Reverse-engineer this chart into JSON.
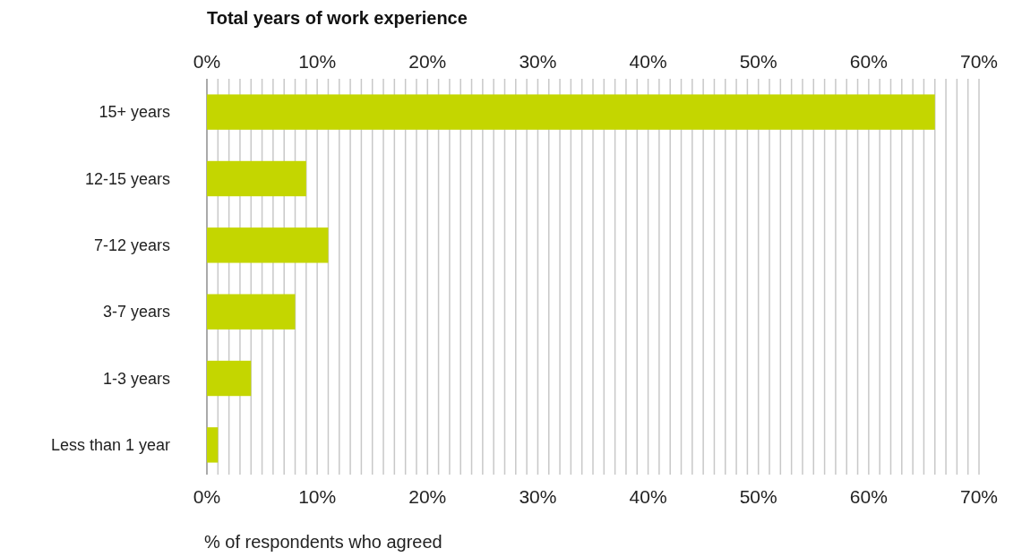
{
  "chart_data": {
    "type": "bar",
    "orientation": "horizontal",
    "title": "Total years of work experience",
    "xlabel": "% of respondents who agreed",
    "categories": [
      "15+ years",
      "12-15 years",
      "7-12 years",
      "3-7 years",
      "1-3 years",
      "Less than 1 year"
    ],
    "values": [
      66,
      9,
      11,
      8,
      4,
      1
    ],
    "color": "#c4d600",
    "xlim": [
      0,
      70
    ],
    "xticks": [
      {
        "value": 0,
        "label": "0%"
      },
      {
        "value": 1,
        "label": null
      },
      {
        "value": 2,
        "label": null
      },
      {
        "value": 3,
        "label": null
      },
      {
        "value": 4,
        "label": null
      },
      {
        "value": 5,
        "label": null
      },
      {
        "value": 6,
        "label": null
      },
      {
        "value": 7,
        "label": null
      },
      {
        "value": 8,
        "label": null
      },
      {
        "value": 9,
        "label": null
      },
      {
        "value": 10,
        "label": "10%"
      },
      {
        "value": 11,
        "label": null
      },
      {
        "value": 12,
        "label": null
      },
      {
        "value": 13,
        "label": null
      },
      {
        "value": 14,
        "label": null
      },
      {
        "value": 15,
        "label": null
      },
      {
        "value": 16,
        "label": null
      },
      {
        "value": 17,
        "label": null
      },
      {
        "value": 18,
        "label": null
      },
      {
        "value": 19,
        "label": null
      },
      {
        "value": 20,
        "label": "20%"
      },
      {
        "value": 21,
        "label": null
      },
      {
        "value": 22,
        "label": null
      },
      {
        "value": 23,
        "label": null
      },
      {
        "value": 24,
        "label": null
      },
      {
        "value": 25,
        "label": null
      },
      {
        "value": 26,
        "label": null
      },
      {
        "value": 27,
        "label": null
      },
      {
        "value": 28,
        "label": null
      },
      {
        "value": 29,
        "label": null
      },
      {
        "value": 30,
        "label": "30%"
      },
      {
        "value": 31,
        "label": null
      },
      {
        "value": 32,
        "label": null
      },
      {
        "value": 33,
        "label": null
      },
      {
        "value": 34,
        "label": null
      },
      {
        "value": 35,
        "label": null
      },
      {
        "value": 36,
        "label": null
      },
      {
        "value": 37,
        "label": null
      },
      {
        "value": 38,
        "label": null
      },
      {
        "value": 39,
        "label": null
      },
      {
        "value": 40,
        "label": "40%"
      },
      {
        "value": 41,
        "label": null
      },
      {
        "value": 42,
        "label": null
      },
      {
        "value": 43,
        "label": null
      },
      {
        "value": 44,
        "label": null
      },
      {
        "value": 45,
        "label": null
      },
      {
        "value": 46,
        "label": null
      },
      {
        "value": 47,
        "label": null
      },
      {
        "value": 48,
        "label": null
      },
      {
        "value": 49,
        "label": null
      },
      {
        "value": 50,
        "label": "50%"
      },
      {
        "value": 51,
        "label": null
      },
      {
        "value": 52,
        "label": null
      },
      {
        "value": 53,
        "label": null
      },
      {
        "value": 54,
        "label": null
      },
      {
        "value": 55,
        "label": null
      },
      {
        "value": 56,
        "label": null
      },
      {
        "value": 57,
        "label": null
      },
      {
        "value": 58,
        "label": null
      },
      {
        "value": 59,
        "label": null
      },
      {
        "value": 60,
        "label": "60%"
      },
      {
        "value": 61,
        "label": null
      },
      {
        "value": 62,
        "label": null
      },
      {
        "value": 63,
        "label": null
      },
      {
        "value": 64,
        "label": null
      },
      {
        "value": 65,
        "label": null
      },
      {
        "value": 66,
        "label": null
      },
      {
        "value": 67,
        "label": null
      },
      {
        "value": 68,
        "label": null
      },
      {
        "value": 69,
        "label": null
      },
      {
        "value": 70,
        "label": "70%"
      }
    ],
    "x2lim": [
      0,
      70
    ],
    "x2ticks": [
      {
        "value": 0,
        "label": "0%"
      },
      {
        "value": 10,
        "label": "10%"
      },
      {
        "value": 20,
        "label": "20%"
      },
      {
        "value": 30,
        "label": "30%"
      },
      {
        "value": 40,
        "label": "40%"
      },
      {
        "value": 50,
        "label": "50%"
      },
      {
        "value": 60,
        "label": "60%"
      },
      {
        "value": 70,
        "label": "70%"
      }
    ],
    "grid": "x"
  }
}
